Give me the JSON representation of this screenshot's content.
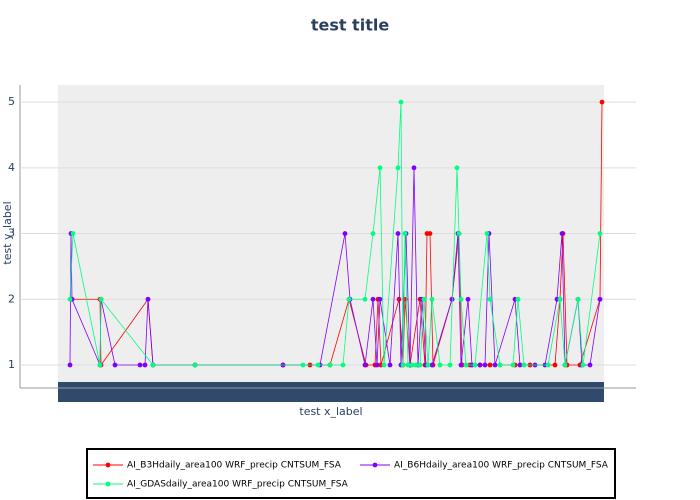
{
  "chart_data": {
    "type": "line",
    "title": "test title",
    "x_label": "test x_label",
    "y_label": "test y_label",
    "xlim": [
      0,
      546
    ],
    "ylim": [
      0.65,
      5.26
    ],
    "yticks": [
      1,
      2,
      3,
      4,
      5
    ],
    "grid": true,
    "series": [
      {
        "name": "AI_B3Hdaily_area100 WRF_precip CNTSUM_FSA",
        "color": "#ff0000",
        "x": [
          14,
          42,
          43,
          90,
          95,
          137,
          225,
          252,
          272,
          291,
          308,
          317,
          320,
          323,
          341,
          345,
          347,
          352,
          362,
          367,
          369,
          372,
          375,
          394,
          401,
          404,
          412,
          422,
          432,
          457,
          472,
          497,
          502,
          505,
          509,
          522,
          542,
          544
        ],
        "values": [
          2,
          2,
          1,
          2,
          1,
          1,
          1,
          1,
          1,
          2,
          1,
          1,
          2,
          1,
          2,
          1,
          2,
          1,
          2,
          1,
          3,
          3,
          1,
          2,
          3,
          1,
          1,
          1,
          1,
          1,
          1,
          1,
          2,
          3,
          1,
          1,
          2,
          5
        ]
      },
      {
        "name": "AI_B6Hdaily_area100 WRF_precip CNTSUM_FSA",
        "color": "#7f00ff",
        "x": [
          12,
          13,
          14,
          42,
          43,
          57,
          82,
          87,
          90,
          95,
          137,
          225,
          262,
          287,
          292,
          307,
          315,
          319,
          322,
          332,
          340,
          343,
          348,
          352,
          356,
          360,
          364,
          368,
          374,
          394,
          400,
          403,
          410,
          414,
          422,
          427,
          431,
          437,
          457,
          462,
          477,
          487,
          499,
          504,
          507,
          520,
          524,
          532,
          542
        ],
        "values": [
          1,
          3,
          2,
          1,
          2,
          1,
          1,
          1,
          2,
          1,
          1,
          1,
          1,
          3,
          2,
          1,
          2,
          1,
          2,
          1,
          3,
          1,
          3,
          1,
          4,
          1,
          2,
          1,
          1,
          2,
          3,
          1,
          2,
          1,
          1,
          1,
          3,
          1,
          2,
          1,
          1,
          1,
          2,
          3,
          1,
          2,
          1,
          1,
          2
        ]
      },
      {
        "name": "AI_GDASdaily_area100 WRF_precip CNTSUM_FSA",
        "color": "#00ff7f",
        "x": [
          12,
          15,
          42,
          43,
          95,
          137,
          245,
          260,
          272,
          285,
          291,
          307,
          315,
          322,
          326,
          340,
          343,
          345,
          347,
          350,
          354,
          358,
          362,
          366,
          370,
          374,
          382,
          392,
          399,
          401,
          403,
          408,
          417,
          429,
          432,
          442,
          455,
          460,
          466,
          490,
          502,
          507,
          520,
          525,
          542
        ],
        "values": [
          2,
          3,
          1,
          2,
          1,
          1,
          1,
          1,
          1,
          1,
          2,
          2,
          3,
          4,
          1,
          4,
          5,
          1,
          3,
          1,
          1,
          1,
          1,
          2,
          1,
          2,
          1,
          1,
          4,
          3,
          2,
          1,
          1,
          3,
          2,
          1,
          1,
          2,
          1,
          1,
          2,
          1,
          2,
          1,
          3
        ]
      }
    ]
  }
}
